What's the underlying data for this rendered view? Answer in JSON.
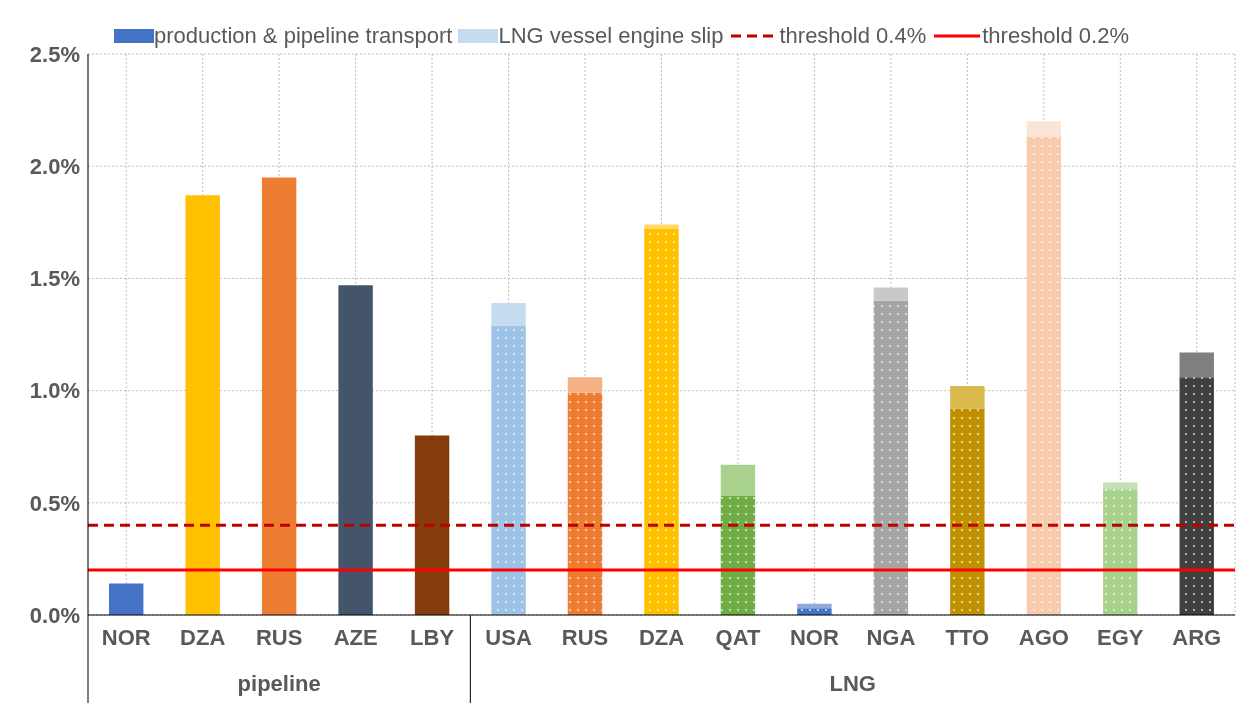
{
  "chart_data": {
    "type": "bar",
    "stacked": true,
    "categories": [
      "NOR",
      "DZA",
      "RUS",
      "AZE",
      "LBY",
      "USA",
      "RUS",
      "DZA",
      "QAT",
      "NOR",
      "NGA",
      "TTO",
      "AGO",
      "EGY",
      "ARG"
    ],
    "annotations": [
      "pipeline",
      "LNG"
    ],
    "series": [
      {
        "name": "production & pipeline transport",
        "color": "#4472c4",
        "values": [
          0.14,
          1.87,
          1.95,
          1.47,
          0.8,
          1.29,
          0.99,
          1.72,
          0.53,
          0.03,
          1.4,
          0.92,
          2.13,
          0.56,
          1.06
        ],
        "colors": [
          "#4472c4",
          "#ffc000",
          "#ed7d31",
          "#44546a",
          "#843c0c",
          "#9dc3e6",
          "#ed7d31",
          "#ffc000",
          "#70ad47",
          "#4472c4",
          "#a5a5a5",
          "#bf9000",
          "#f8cbad",
          "#a9d18e",
          "#404040"
        ]
      },
      {
        "name": "LNG vessel engine slip",
        "color": "#c5dcf0",
        "values": [
          null,
          null,
          null,
          null,
          null,
          0.1,
          0.07,
          0.02,
          0.14,
          0.02,
          0.06,
          0.1,
          0.07,
          0.03,
          0.11
        ],
        "colors": [
          "#8faadc",
          "#ffd966",
          "#f4b183",
          "#8497b0",
          "#c55a11",
          "#c5dcf0",
          "#f4b183",
          "#ffd966",
          "#a9d18e",
          "#8faadc",
          "#c9c9c9",
          "#dab94d",
          "#fbe5d6",
          "#c5e0b4",
          "#7f7f7f"
        ]
      }
    ],
    "ref_lines": [
      {
        "axis": "y",
        "value": 0.4,
        "label": "threshold 0.4%",
        "color": "#c00000",
        "line_style": "dashed"
      },
      {
        "axis": "y",
        "value": 0.2,
        "label": "threshold 0.2%",
        "color": "#ff0000",
        "line_style": "solid"
      }
    ],
    "ylim": [
      0,
      2.5
    ],
    "yticks": [
      {
        "value": 0,
        "label": "0.0%"
      },
      {
        "value": 0.5,
        "label": "0.5%"
      },
      {
        "value": 1,
        "label": "1.0%"
      },
      {
        "value": 1.5,
        "label": "1.5%"
      },
      {
        "value": 2,
        "label": "2.0%"
      },
      {
        "value": 2.5,
        "label": "2.5%"
      }
    ],
    "grid": true,
    "legend": "top"
  }
}
